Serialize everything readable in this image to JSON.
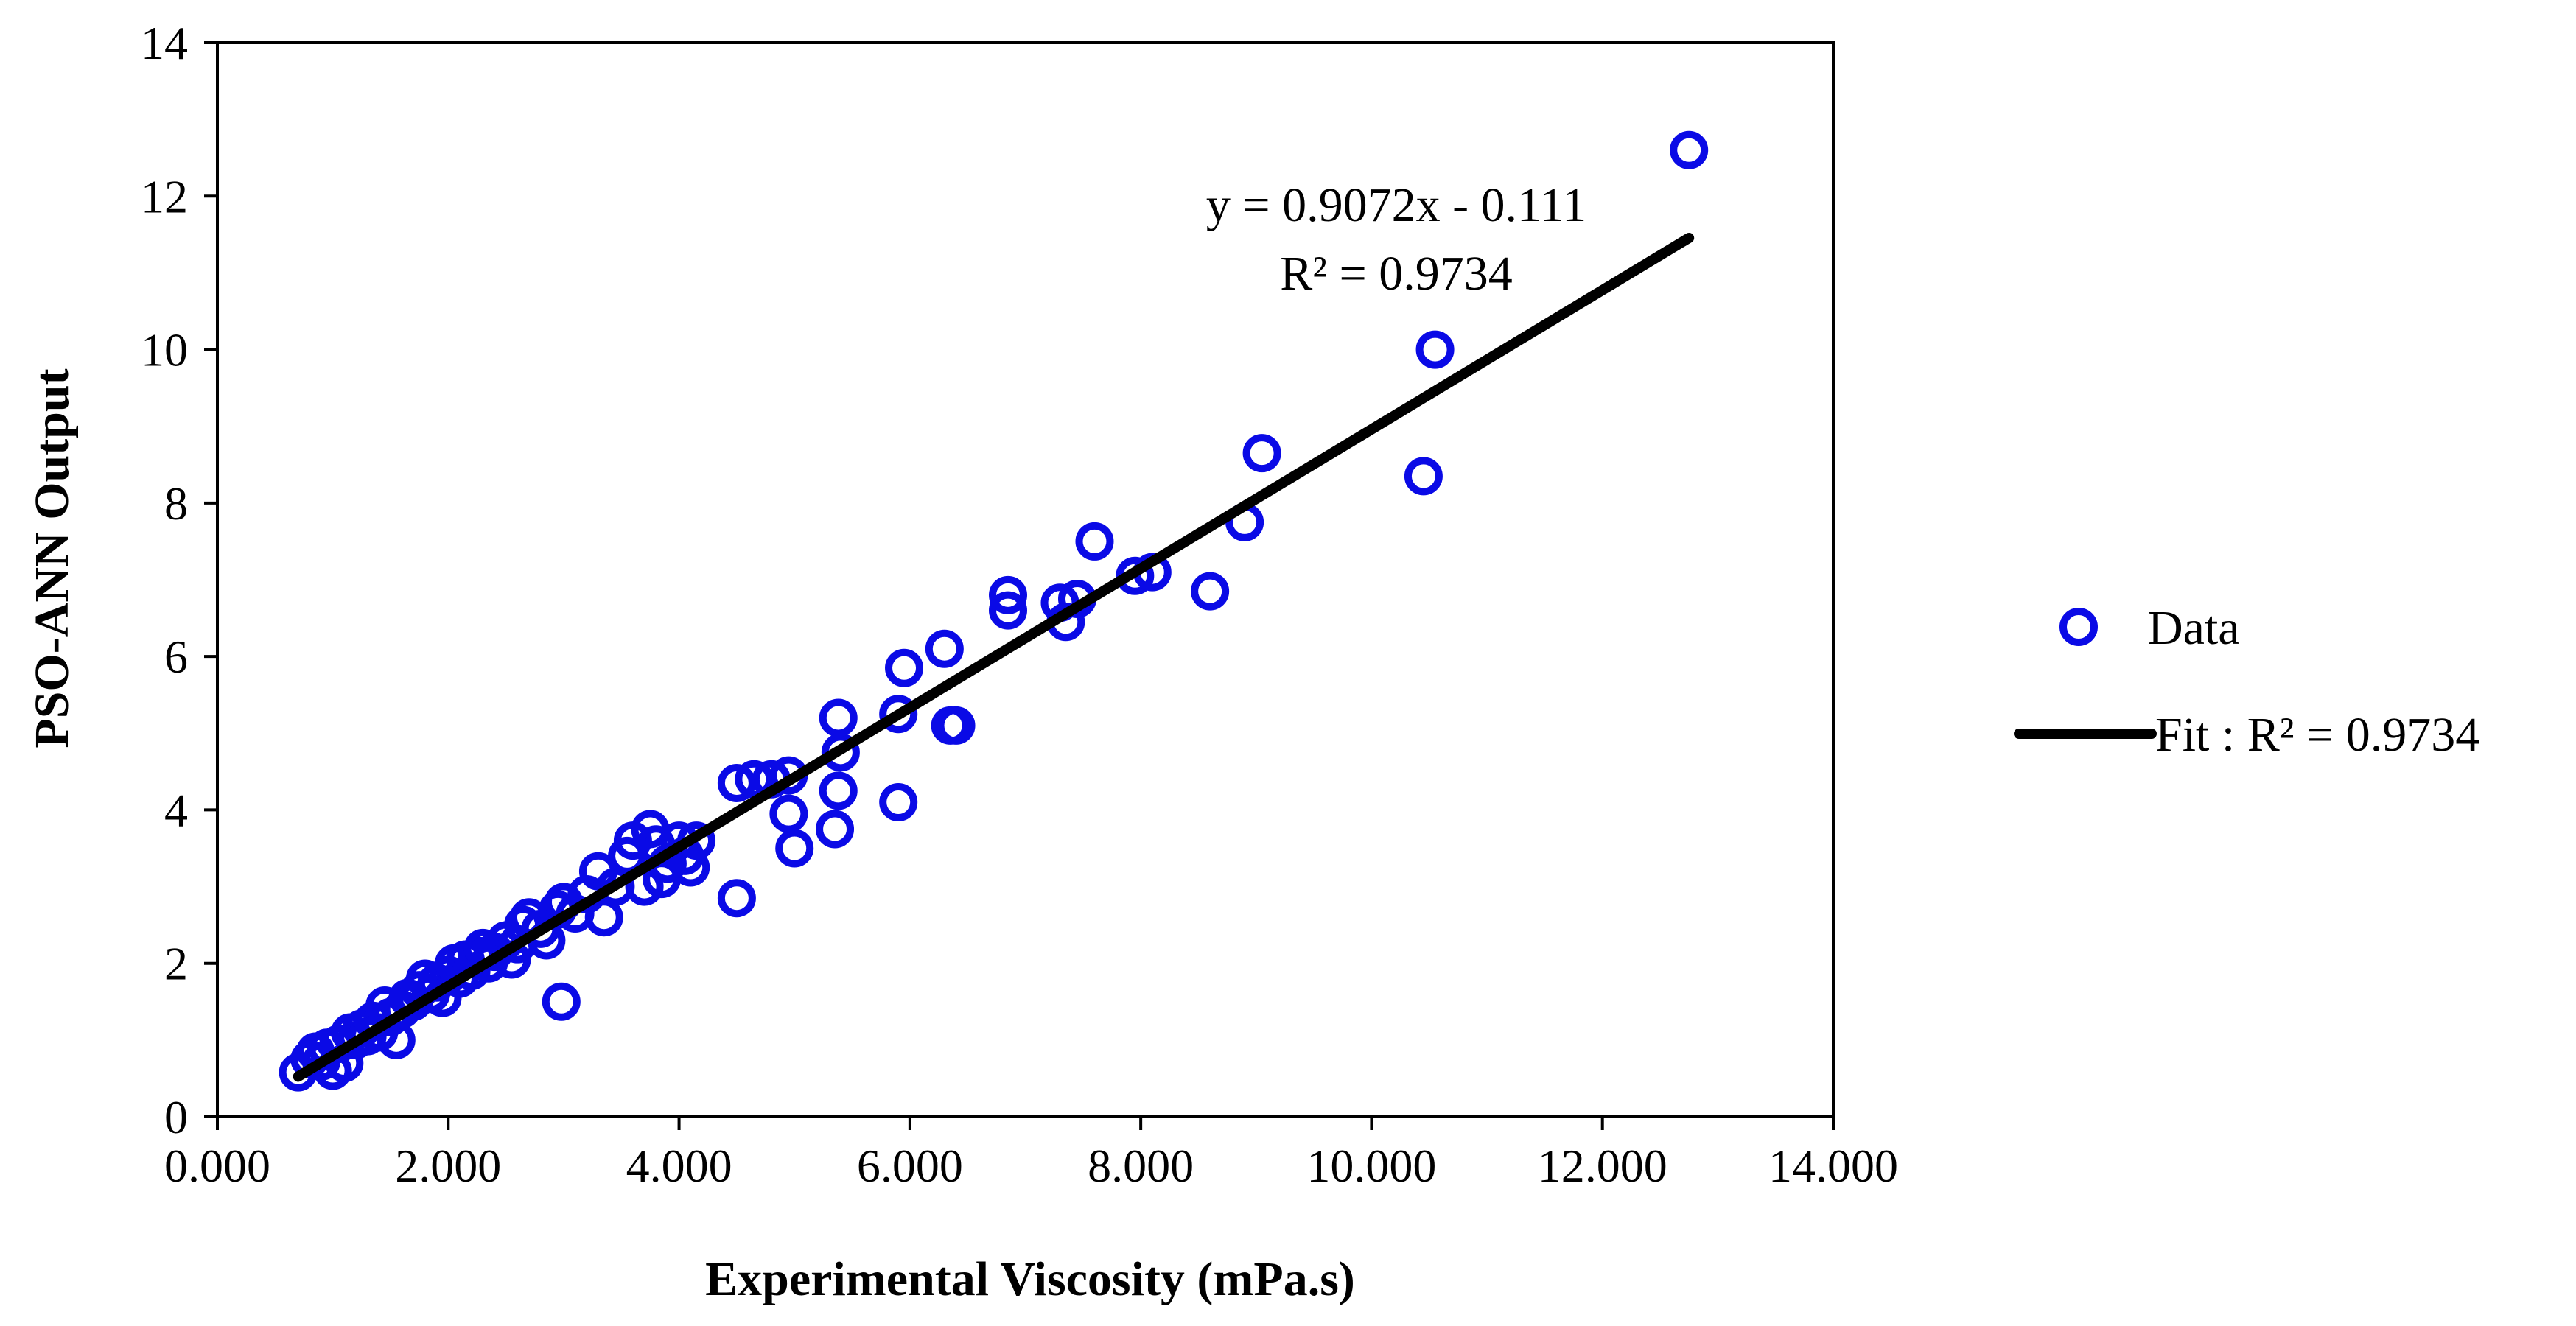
{
  "chart_data": {
    "type": "scatter",
    "xlabel": "Experimental Viscosity (mPa.s)",
    "ylabel": "PSO-ANN Output",
    "xlim": [
      0,
      14
    ],
    "ylim": [
      0,
      14
    ],
    "x_ticks": [
      0,
      2,
      4,
      6,
      8,
      10,
      12,
      14
    ],
    "x_tick_labels": [
      "0.000",
      "2.000",
      "4.000",
      "6.000",
      "8.000",
      "10.000",
      "12.000",
      "14.000"
    ],
    "y_ticks": [
      0,
      2,
      4,
      6,
      8,
      10,
      12,
      14
    ],
    "y_tick_labels": [
      "0",
      "2",
      "4",
      "6",
      "8",
      "10",
      "12",
      "14"
    ],
    "grid": false,
    "legend_position": "right",
    "colors": {
      "data": "#0a0ae6",
      "fit": "#000000"
    },
    "annotation": {
      "equation": "y = 0.9072x - 0.111",
      "r2": "R² = 0.9734"
    },
    "fit": {
      "slope": 0.9072,
      "intercept": -0.111,
      "x_range": [
        0.7,
        12.75
      ]
    },
    "series": [
      {
        "name": "Data",
        "marker": "circle-open",
        "points": [
          [
            0.7,
            0.58
          ],
          [
            0.8,
            0.75
          ],
          [
            0.85,
            0.85
          ],
          [
            0.9,
            0.72
          ],
          [
            0.95,
            0.9
          ],
          [
            1.0,
            0.6
          ],
          [
            1.05,
            0.95
          ],
          [
            1.1,
            0.7
          ],
          [
            1.15,
            1.1
          ],
          [
            1.2,
            1.0
          ],
          [
            1.25,
            1.15
          ],
          [
            1.3,
            1.05
          ],
          [
            1.35,
            1.25
          ],
          [
            1.4,
            1.1
          ],
          [
            1.45,
            1.45
          ],
          [
            1.5,
            1.3
          ],
          [
            1.55,
            1.0
          ],
          [
            1.6,
            1.4
          ],
          [
            1.65,
            1.55
          ],
          [
            1.7,
            1.5
          ],
          [
            1.75,
            1.65
          ],
          [
            1.8,
            1.8
          ],
          [
            1.85,
            1.6
          ],
          [
            1.9,
            1.75
          ],
          [
            1.95,
            1.55
          ],
          [
            2.0,
            1.85
          ],
          [
            2.05,
            2.0
          ],
          [
            2.1,
            1.8
          ],
          [
            2.15,
            2.05
          ],
          [
            2.2,
            1.9
          ],
          [
            2.25,
            2.1
          ],
          [
            2.3,
            2.2
          ],
          [
            2.35,
            2.0
          ],
          [
            2.4,
            2.15
          ],
          [
            2.5,
            2.3
          ],
          [
            2.55,
            2.05
          ],
          [
            2.6,
            2.25
          ],
          [
            2.65,
            2.5
          ],
          [
            2.7,
            2.6
          ],
          [
            2.8,
            2.45
          ],
          [
            2.85,
            2.3
          ],
          [
            2.95,
            2.7
          ],
          [
            3.0,
            2.8
          ],
          [
            3.1,
            2.65
          ],
          [
            3.2,
            2.9
          ],
          [
            3.3,
            3.2
          ],
          [
            3.35,
            2.6
          ],
          [
            3.45,
            3.0
          ],
          [
            3.55,
            3.4
          ],
          [
            3.6,
            3.6
          ],
          [
            3.7,
            3.0
          ],
          [
            3.75,
            3.75
          ],
          [
            3.8,
            3.55
          ],
          [
            3.85,
            3.1
          ],
          [
            3.9,
            3.3
          ],
          [
            4.0,
            3.6
          ],
          [
            4.05,
            3.4
          ],
          [
            4.1,
            3.25
          ],
          [
            4.15,
            3.6
          ],
          [
            2.98,
            1.5
          ],
          [
            4.5,
            2.85
          ],
          [
            4.5,
            4.35
          ],
          [
            4.65,
            4.4
          ],
          [
            4.8,
            4.4
          ],
          [
            4.95,
            3.95
          ],
          [
            4.95,
            4.45
          ],
          [
            5.0,
            3.5
          ],
          [
            5.35,
            3.75
          ],
          [
            5.38,
            4.25
          ],
          [
            5.4,
            4.75
          ],
          [
            5.38,
            5.2
          ],
          [
            5.9,
            4.1
          ],
          [
            5.9,
            5.25
          ],
          [
            5.95,
            5.85
          ],
          [
            6.3,
            6.1
          ],
          [
            6.35,
            5.1
          ],
          [
            6.4,
            5.1
          ],
          [
            6.85,
            6.6
          ],
          [
            6.85,
            6.8
          ],
          [
            7.3,
            6.7
          ],
          [
            7.35,
            6.45
          ],
          [
            7.45,
            6.75
          ],
          [
            7.6,
            7.5
          ],
          [
            7.95,
            7.05
          ],
          [
            8.1,
            7.1
          ],
          [
            8.6,
            6.85
          ],
          [
            8.9,
            7.75
          ],
          [
            9.05,
            8.65
          ],
          [
            10.45,
            8.35
          ],
          [
            10.55,
            10.0
          ],
          [
            12.75,
            12.6
          ]
        ]
      },
      {
        "name": "Fit : R² = 0.9734",
        "marker": "line"
      }
    ]
  }
}
